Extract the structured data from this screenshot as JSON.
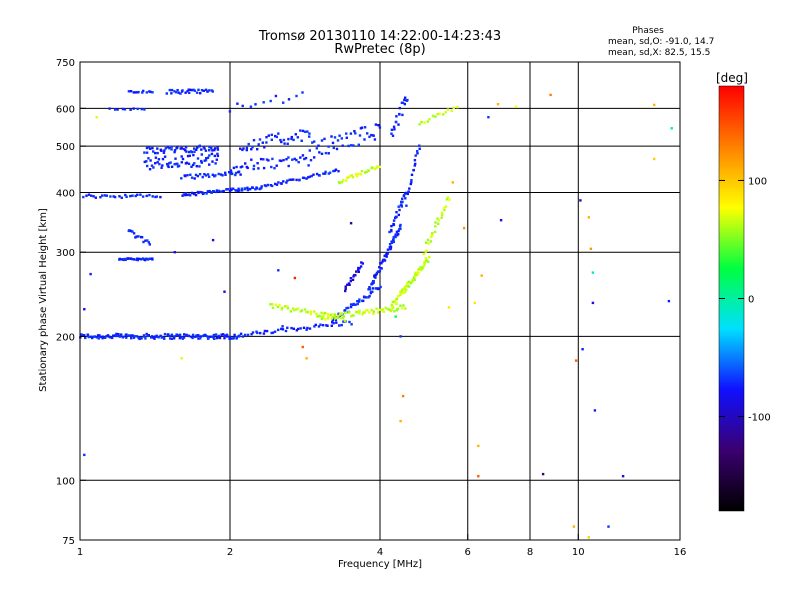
{
  "chart_data": {
    "type": "scatter",
    "title": "Tromsø 20130110 14:22:00-14:23:43",
    "subtitle": "RwPretec (8p)",
    "phase_info": {
      "heading": "Phases",
      "line_o": "mean, sd,O: -91.0, 14.7",
      "line_x": "mean, sd,X: 82.5, 15.5"
    },
    "xlabel": "Frequency [MHz]",
    "ylabel": "Stationary phase Virtual Height [km]",
    "x_scale": "log",
    "y_scale": "log",
    "xlim": [
      1,
      16
    ],
    "ylim": [
      75,
      750
    ],
    "x_ticks": [
      1,
      2,
      4,
      6,
      8,
      10,
      16
    ],
    "y_ticks": [
      75,
      100,
      200,
      300,
      400,
      500,
      600,
      750
    ],
    "x_gridlines": [
      2,
      4,
      6,
      8,
      10
    ],
    "y_gridlines": [
      100,
      200,
      300,
      400,
      500,
      600
    ],
    "colorbar": {
      "label": "[deg]",
      "range": [
        -180,
        180
      ],
      "ticks": [
        100,
        0,
        -100
      ],
      "colors": [
        "#000000",
        "#3a0070",
        "#1010ff",
        "#00e0ff",
        "#00ff40",
        "#ffff00",
        "#ff8000",
        "#ff0000"
      ]
    },
    "series": [
      {
        "phase": -105,
        "traces": [
          {
            "x": [
              1.0,
              2.1
            ],
            "y": [
              200,
              200
            ],
            "n": 140,
            "s": 0.012
          },
          {
            "x": [
              2.1,
              3.5
            ],
            "y": [
              201,
              214
            ],
            "n": 45,
            "s": 0.01
          },
          {
            "x": [
              3.2,
              4.0
            ],
            "y": [
              215,
              255
            ],
            "n": 40,
            "s": 0.012
          },
          {
            "x": [
              3.8,
              4.4
            ],
            "y": [
              250,
              340
            ],
            "n": 60,
            "s": 0.012
          },
          {
            "x": [
              4.2,
              4.5
            ],
            "y": [
              330,
              400
            ],
            "n": 25,
            "s": 0.012
          },
          {
            "x": [
              1.0,
              1.45
            ],
            "y": [
              393,
              393
            ],
            "n": 30,
            "s": 0.008
          },
          {
            "x": [
              1.6,
              2.3
            ],
            "y": [
              395,
              410
            ],
            "n": 60,
            "s": 0.008
          },
          {
            "x": [
              2.3,
              3.3
            ],
            "y": [
              410,
              445
            ],
            "n": 40,
            "s": 0.006
          },
          {
            "x": [
              1.2,
              1.4
            ],
            "y": [
              290,
              290
            ],
            "n": 30,
            "s": 0.004
          },
          {
            "x": [
              1.25,
              1.38
            ],
            "y": [
              333,
              312
            ],
            "n": 15,
            "s": 0.01
          },
          {
            "x": [
              1.35,
              1.9
            ],
            "y": [
              460,
              470
            ],
            "n": 60,
            "s": 0.03
          },
          {
            "x": [
              1.35,
              1.9
            ],
            "y": [
              490,
              495
            ],
            "n": 50,
            "s": 0.015
          },
          {
            "x": [
              1.6,
              2.1
            ],
            "y": [
              430,
              440
            ],
            "n": 30,
            "s": 0.01
          },
          {
            "x": [
              2.0,
              2.9
            ],
            "y": [
              450,
              470
            ],
            "n": 40,
            "s": 0.03
          },
          {
            "x": [
              2.1,
              2.9
            ],
            "y": [
              500,
              530
            ],
            "n": 40,
            "s": 0.03
          },
          {
            "x": [
              2.9,
              4.0
            ],
            "y": [
              490,
              540
            ],
            "n": 45,
            "s": 0.04
          },
          {
            "x": [
              1.25,
              1.4
            ],
            "y": [
              650,
              650
            ],
            "n": 12,
            "s": 0.004
          },
          {
            "x": [
              1.5,
              1.85
            ],
            "y": [
              650,
              650
            ],
            "n": 30,
            "s": 0.01
          },
          {
            "x": [
              1.15,
              1.35
            ],
            "y": [
              598,
              598
            ],
            "n": 10,
            "s": 0.005
          },
          {
            "x": [
              2.0,
              2.8
            ],
            "y": [
              600,
              640
            ],
            "n": 12,
            "s": 0.02
          },
          {
            "x": [
              4.2,
              4.55
            ],
            "y": [
              520,
              640
            ],
            "n": 20,
            "s": 0.03
          },
          {
            "x": [
              4.5,
              4.8
            ],
            "y": [
              380,
              500
            ],
            "n": 20,
            "s": 0.02
          }
        ]
      },
      {
        "phase": 75,
        "traces": [
          {
            "x": [
              2.4,
              3.4
            ],
            "y": [
              232,
              218
            ],
            "n": 40,
            "s": 0.012
          },
          {
            "x": [
              3.0,
              4.5
            ],
            "y": [
              218,
              230
            ],
            "n": 55,
            "s": 0.012
          },
          {
            "x": [
              4.2,
              5.0
            ],
            "y": [
              230,
              290
            ],
            "n": 60,
            "s": 0.015
          },
          {
            "x": [
              4.9,
              5.5
            ],
            "y": [
              300,
              390
            ],
            "n": 25,
            "s": 0.015
          },
          {
            "x": [
              3.3,
              4.0
            ],
            "y": [
              420,
              455
            ],
            "n": 25,
            "s": 0.008
          },
          {
            "x": [
              4.8,
              5.7
            ],
            "y": [
              560,
              600
            ],
            "n": 15,
            "s": 0.01
          }
        ]
      },
      {
        "phase": -125,
        "traces": [
          {
            "x": [
              3.4,
              3.7
            ],
            "y": [
              250,
              285
            ],
            "n": 20,
            "s": 0.01
          }
        ]
      }
    ],
    "scattered": [
      [
        1.02,
        228,
        -120
      ],
      [
        1.02,
        113,
        -100
      ],
      [
        1.05,
        270,
        -110
      ],
      [
        1.08,
        575,
        80
      ],
      [
        1.6,
        180,
        80
      ],
      [
        1.55,
        300,
        -120
      ],
      [
        1.85,
        318,
        -120
      ],
      [
        1.95,
        248,
        -120
      ],
      [
        2.5,
        275,
        -100
      ],
      [
        2.7,
        265,
        170
      ],
      [
        2.55,
        210,
        -100
      ],
      [
        2.8,
        190,
        150
      ],
      [
        2.85,
        180,
        120
      ],
      [
        3.5,
        345,
        -140
      ],
      [
        3.9,
        268,
        -130
      ],
      [
        4.3,
        220,
        20
      ],
      [
        4.4,
        200,
        -100
      ],
      [
        4.4,
        133,
        120
      ],
      [
        4.45,
        150,
        140
      ],
      [
        5.5,
        230,
        100
      ],
      [
        5.6,
        420,
        120
      ],
      [
        5.9,
        337,
        130
      ],
      [
        6.2,
        235,
        100
      ],
      [
        6.3,
        118,
        120
      ],
      [
        6.3,
        102,
        150
      ],
      [
        6.4,
        268,
        120
      ],
      [
        6.6,
        575,
        -100
      ],
      [
        6.9,
        612,
        120
      ],
      [
        7.0,
        350,
        -120
      ],
      [
        7.5,
        605,
        90
      ],
      [
        8.5,
        103,
        -150
      ],
      [
        8.8,
        640,
        140
      ],
      [
        9.8,
        80,
        120
      ],
      [
        10.1,
        385,
        -130
      ],
      [
        10.2,
        188,
        -110
      ],
      [
        10.5,
        355,
        120
      ],
      [
        10.6,
        305,
        130
      ],
      [
        10.7,
        272,
        -10
      ],
      [
        10.7,
        235,
        -120
      ],
      [
        10.8,
        140,
        -110
      ],
      [
        10.5,
        76,
        110
      ],
      [
        11.5,
        80,
        -100
      ],
      [
        14.2,
        470,
        110
      ],
      [
        14.2,
        610,
        120
      ],
      [
        15.2,
        237,
        -110
      ],
      [
        15.4,
        545,
        0
      ],
      [
        12.3,
        102,
        -120
      ],
      [
        9.9,
        178,
        150
      ]
    ]
  }
}
